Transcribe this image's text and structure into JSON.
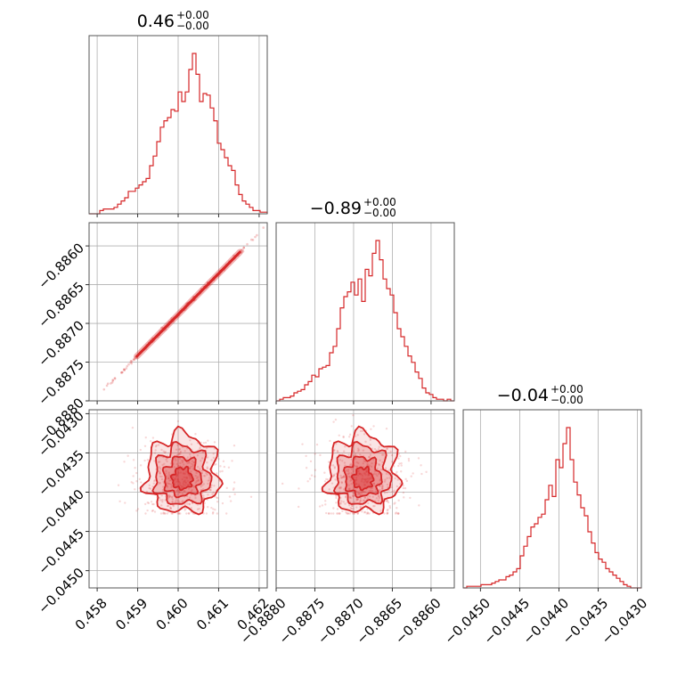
{
  "chart_data": {
    "type": "corner",
    "color": "#d62728",
    "grid": true,
    "parameters": [
      {
        "title": {
          "value": "0.46",
          "plus": "+0.00",
          "minus": "−0.00"
        },
        "range": [
          0.4578,
          0.4622
        ],
        "ticks": [
          0.458,
          0.459,
          0.46,
          0.461,
          0.462
        ],
        "tick_labels": [
          "0.458",
          "0.459",
          "0.460",
          "0.461",
          "0.462"
        ],
        "hist": [
          0,
          0,
          0,
          0.02,
          0.03,
          0.03,
          0.03,
          0.04,
          0.06,
          0.08,
          0.1,
          0.14,
          0.14,
          0.16,
          0.18,
          0.2,
          0.22,
          0.3,
          0.36,
          0.45,
          0.54,
          0.58,
          0.6,
          0.65,
          0.64,
          0.76,
          0.7,
          0.76,
          0.9,
          1.0,
          0.87,
          0.7,
          0.75,
          0.74,
          0.66,
          0.58,
          0.44,
          0.4,
          0.35,
          0.3,
          0.27,
          0.18,
          0.12,
          0.08,
          0.06,
          0.04,
          0.02,
          0.02,
          0.01,
          0.01
        ]
      },
      {
        "title": {
          "value": "−0.89",
          "plus": "+0.00",
          "minus": "−0.00"
        },
        "range": [
          -0.888,
          -0.8857
        ],
        "ticks": [
          -0.888,
          -0.8875,
          -0.887,
          -0.8865,
          -0.886
        ],
        "tick_labels": [
          "−0.8880",
          "−0.8875",
          "−0.8870",
          "−0.8865",
          "−0.8860"
        ],
        "hist": [
          0,
          0.01,
          0.02,
          0.02,
          0.03,
          0.05,
          0.06,
          0.07,
          0.1,
          0.12,
          0.16,
          0.15,
          0.2,
          0.21,
          0.22,
          0.3,
          0.34,
          0.45,
          0.58,
          0.65,
          0.68,
          0.74,
          0.66,
          0.76,
          0.62,
          0.82,
          0.78,
          0.92,
          1.0,
          0.88,
          0.76,
          0.7,
          0.66,
          0.55,
          0.45,
          0.4,
          0.34,
          0.28,
          0.24,
          0.18,
          0.14,
          0.08,
          0.05,
          0.04,
          0.02,
          0.01,
          0.01,
          0,
          0.01,
          0
        ]
      },
      {
        "title": {
          "value": "−0.04",
          "plus": "+0.00",
          "minus": "−0.00"
        },
        "range": [
          -0.04522,
          -0.04295
        ],
        "ticks": [
          -0.045,
          -0.0445,
          -0.044,
          -0.0435,
          -0.043
        ],
        "tick_labels": [
          "−0.0450",
          "−0.0445",
          "−0.0440",
          "−0.0435",
          "−0.0430"
        ],
        "hist": [
          0,
          0.01,
          0.01,
          0.01,
          0.01,
          0.02,
          0.02,
          0.02,
          0.03,
          0.04,
          0.05,
          0.05,
          0.07,
          0.08,
          0.1,
          0.12,
          0.2,
          0.26,
          0.32,
          0.38,
          0.4,
          0.44,
          0.46,
          0.55,
          0.64,
          0.57,
          0.8,
          0.75,
          0.9,
          1.0,
          0.8,
          0.66,
          0.58,
          0.5,
          0.45,
          0.35,
          0.28,
          0.22,
          0.18,
          0.16,
          0.12,
          0.1,
          0.08,
          0.06,
          0.04,
          0.02,
          0.01,
          0,
          0,
          0
        ]
      }
    ],
    "correlations": [
      {
        "x": 0,
        "y": 1,
        "kind": "linear",
        "slope": 0.5
      },
      {
        "x": 0,
        "y": 2,
        "kind": "blob",
        "x_center": 0.4601,
        "x_spread": 0.00045,
        "y_center": -0.04385,
        "y_spread": 0.00022
      },
      {
        "x": 1,
        "y": 2,
        "kind": "blob",
        "x_center": -0.88688,
        "x_spread": 0.00023,
        "y_center": -0.04385,
        "y_spread": 0.00022
      }
    ]
  }
}
